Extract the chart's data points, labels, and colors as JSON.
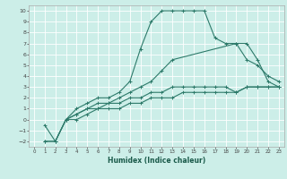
{
  "xlabel": "Humidex (Indice chaleur)",
  "bg_color": "#cceee8",
  "grid_color": "#ffffff",
  "line_color": "#2d7a6a",
  "xlim": [
    -0.5,
    23.5
  ],
  "ylim": [
    -2.5,
    10.5
  ],
  "xticks": [
    0,
    1,
    2,
    3,
    4,
    5,
    6,
    7,
    8,
    9,
    10,
    11,
    12,
    13,
    14,
    15,
    16,
    17,
    18,
    19,
    20,
    21,
    22,
    23
  ],
  "yticks": [
    -2,
    -1,
    0,
    1,
    2,
    3,
    4,
    5,
    6,
    7,
    8,
    9,
    10
  ],
  "series": [
    {
      "x": [
        1,
        2,
        3,
        4,
        5,
        6,
        7,
        8,
        9,
        10,
        11,
        12,
        13,
        14,
        15,
        16,
        17,
        18,
        19,
        20,
        21,
        22,
        23
      ],
      "y": [
        -2,
        -2,
        0,
        1,
        1.5,
        2,
        2,
        2.5,
        3.5,
        6.5,
        9,
        10,
        10,
        10,
        10,
        10,
        7.5,
        7,
        7,
        7,
        5.5,
        3.5,
        3
      ]
    },
    {
      "x": [
        3,
        4,
        5,
        6,
        7,
        8,
        9,
        10,
        11,
        12,
        13,
        19,
        20,
        21,
        22,
        23
      ],
      "y": [
        0,
        0.5,
        1,
        1.5,
        1.5,
        2,
        2.5,
        3,
        3.5,
        4.5,
        5.5,
        7,
        5.5,
        5,
        4,
        3.5
      ]
    },
    {
      "x": [
        1,
        2,
        3,
        4,
        5,
        6,
        7,
        8,
        9,
        10,
        11,
        12,
        13,
        14,
        15,
        16,
        17,
        18,
        19,
        20,
        21,
        22,
        23
      ],
      "y": [
        -0.5,
        -2,
        0,
        0.5,
        1,
        1,
        1.5,
        1.5,
        2,
        2,
        2.5,
        2.5,
        3,
        3,
        3,
        3,
        3,
        3,
        2.5,
        3,
        3,
        3,
        3
      ]
    },
    {
      "x": [
        1,
        2,
        3,
        4,
        5,
        6,
        7,
        8,
        9,
        10,
        11,
        12,
        13,
        14,
        15,
        16,
        17,
        18,
        19,
        20,
        21,
        22,
        23
      ],
      "y": [
        -2,
        -2,
        0,
        0,
        0.5,
        1,
        1,
        1,
        1.5,
        1.5,
        2,
        2,
        2,
        2.5,
        2.5,
        2.5,
        2.5,
        2.5,
        2.5,
        3,
        3,
        3,
        3
      ]
    }
  ]
}
